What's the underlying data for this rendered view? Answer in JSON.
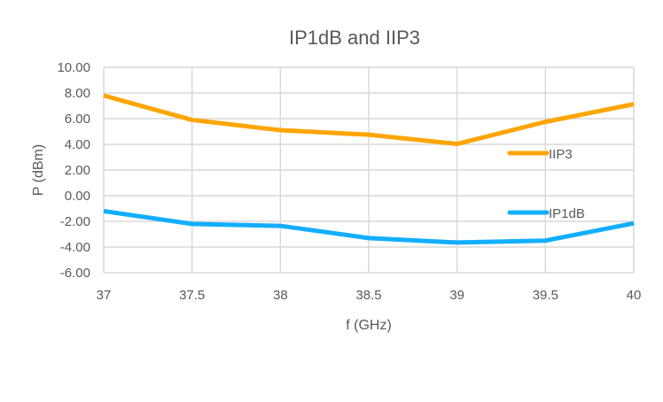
{
  "chart_data": {
    "type": "line",
    "title": "IP1dB and IIP3",
    "xlabel": "f (GHz)",
    "ylabel": "P (dBm)",
    "x": [
      37,
      37.5,
      38,
      38.5,
      39,
      39.5,
      40
    ],
    "x_tick_labels": [
      "37",
      "37.5",
      "38",
      "38.5",
      "39",
      "39.5",
      "40"
    ],
    "y_tick_labels": [
      "10.00",
      "8.00",
      "6.00",
      "4.00",
      "2.00",
      "0.00",
      "-2.00",
      "-4.00",
      "-6.00"
    ],
    "y_ticks": [
      10,
      8,
      6,
      4,
      2,
      0,
      -2,
      -4,
      -6
    ],
    "xlim": [
      37,
      40
    ],
    "ylim": [
      -6,
      10
    ],
    "grid": true,
    "legend_placement": "right-inside",
    "series": [
      {
        "name": "IIP3",
        "color": "#FFA500",
        "values": [
          7.8,
          5.9,
          5.1,
          4.75,
          4.03,
          5.75,
          7.13
        ]
      },
      {
        "name": "IP1dB",
        "color": "#13AEFF",
        "values": [
          -1.2,
          -2.2,
          -2.35,
          -3.3,
          -3.65,
          -3.5,
          -2.15
        ]
      }
    ]
  }
}
